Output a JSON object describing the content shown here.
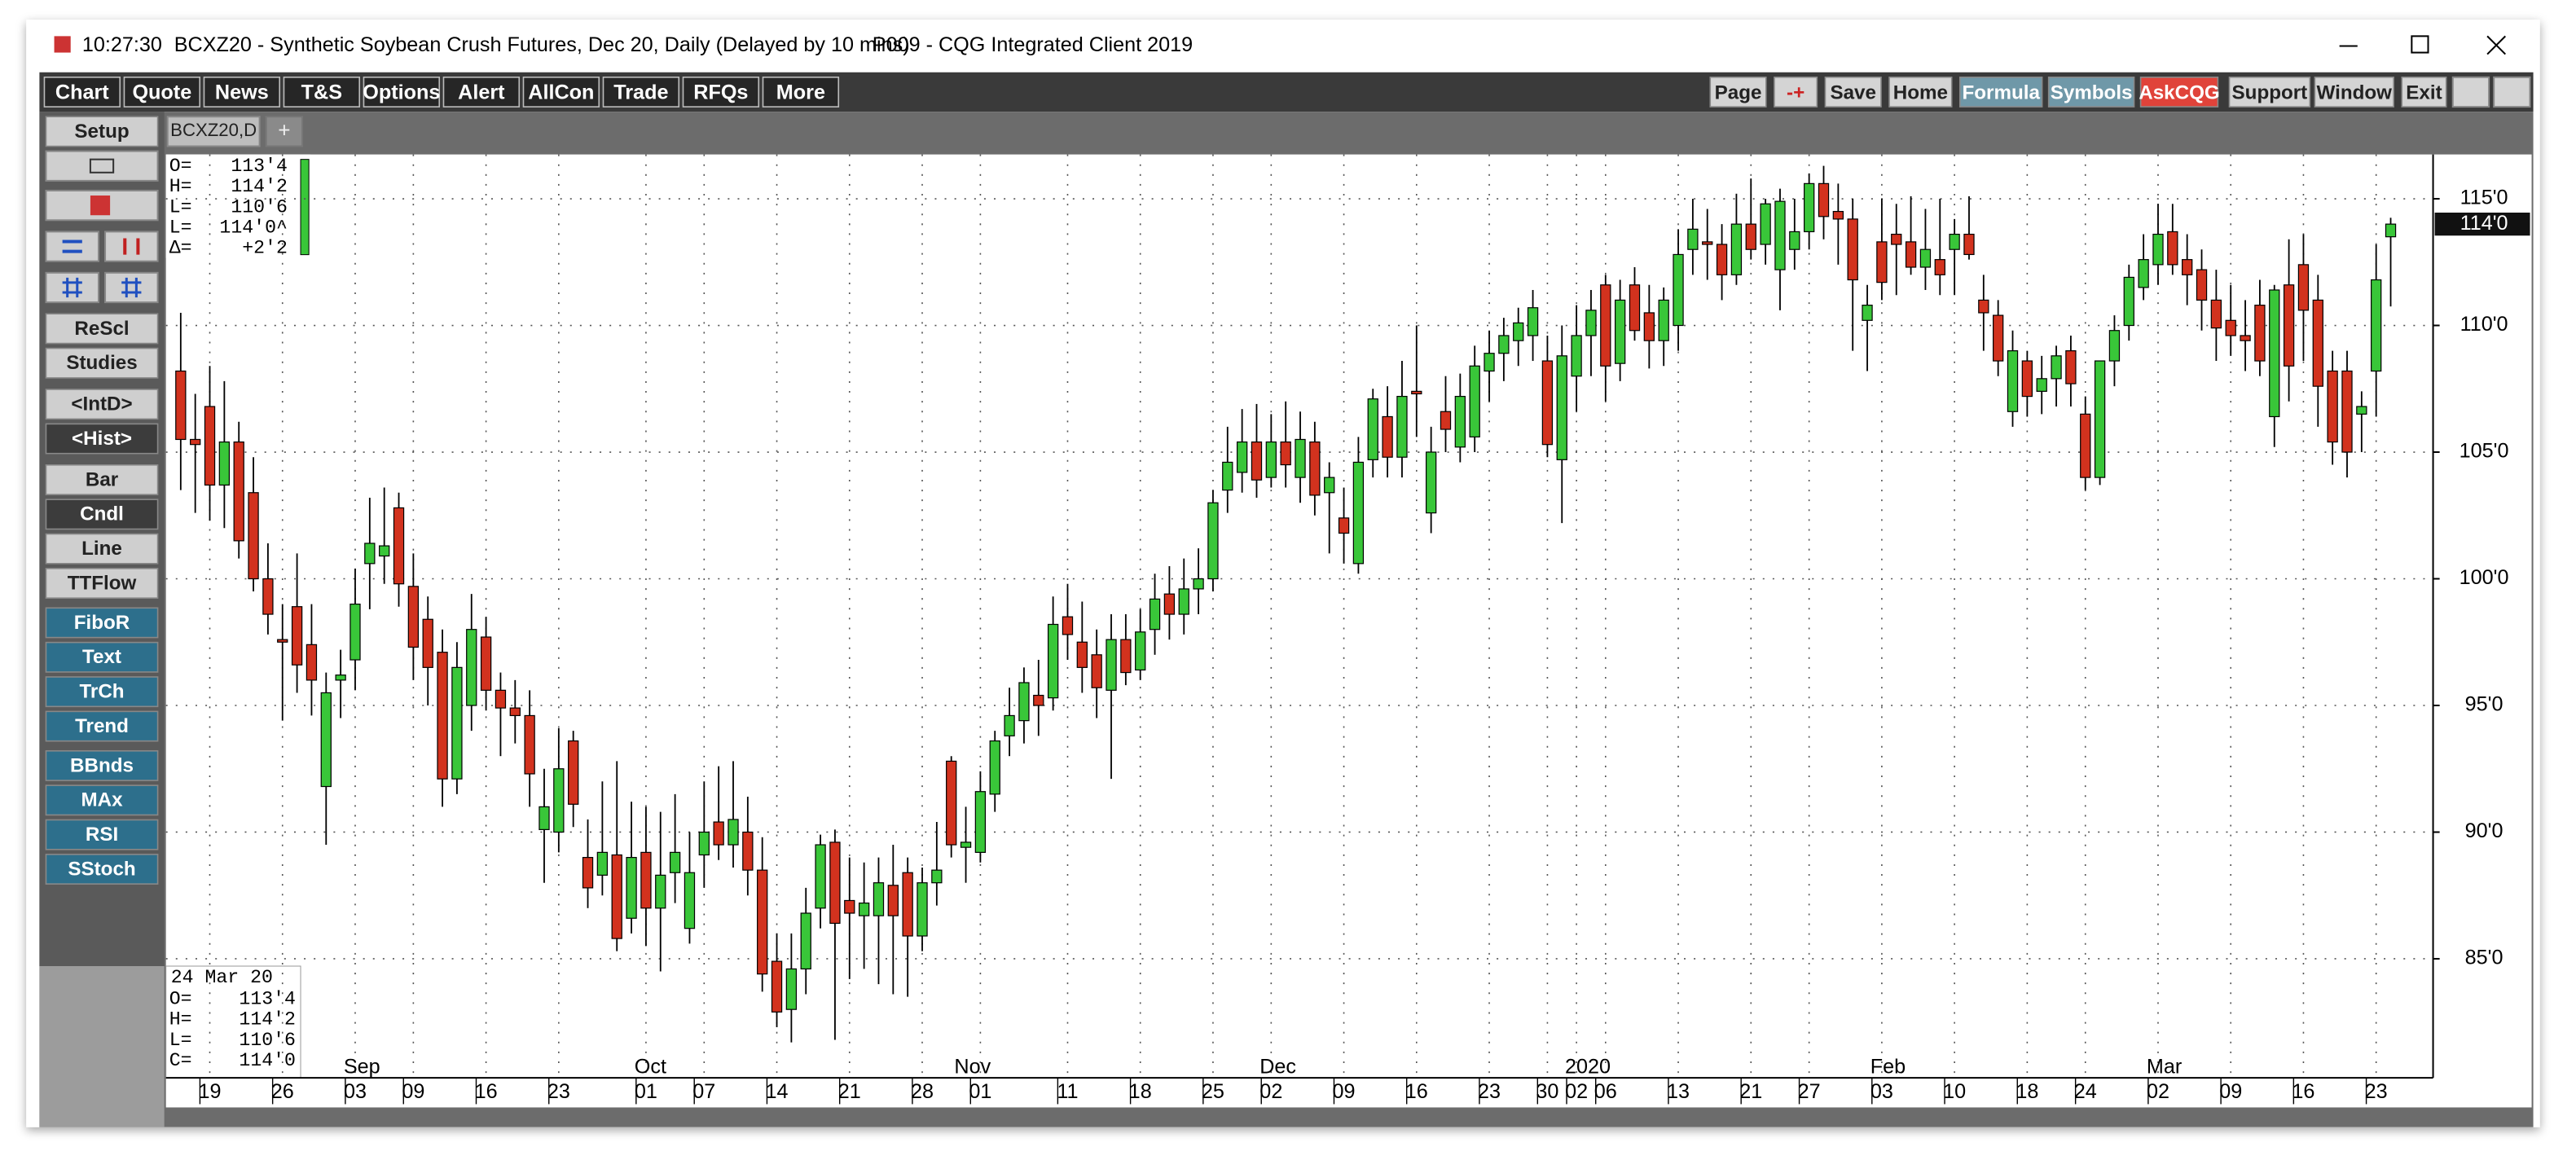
{
  "window": {
    "time": "10:27:30",
    "title": "BCXZ20 - Synthetic Soybean Crush Futures, Dec 20, Daily (Delayed by 10 mins)",
    "workspace": "P009 - CQG Integrated Client 2019"
  },
  "toolbar_left": [
    "Chart",
    "Quote",
    "News",
    "T&S",
    "Options",
    "Alert",
    "AllCon",
    "Trade",
    "RFQs",
    "More"
  ],
  "toolbar_right": [
    "Page",
    "-+",
    "Save",
    "Home",
    "Formula",
    "Symbols",
    "AskCQG",
    "Support",
    "Window",
    "Exit"
  ],
  "tabs": [
    "BCXZ20,D",
    "+"
  ],
  "sidebar": [
    "Setup",
    "ReScl",
    "Studies",
    "<IntD>",
    "<Hist>",
    "Bar",
    "Cndl",
    "Line",
    "TTFlow",
    "FiboR",
    "Text",
    "TrCh",
    "Trend",
    "BBnds",
    "MAx",
    "RSI",
    "SStoch"
  ],
  "quote_box": [
    {
      "label": "O=",
      "value": "113'4"
    },
    {
      "label": "H=",
      "value": "114'2"
    },
    {
      "label": "L=",
      "value": "110'6"
    },
    {
      "label": "L=",
      "value": "114'0^"
    },
    {
      "label": "Δ=",
      "value": "+2'2"
    }
  ],
  "cursor_box": {
    "date": "24 Mar 20",
    "rows": [
      {
        "label": "O=",
        "value": "113'4"
      },
      {
        "label": "H=",
        "value": "114'2"
      },
      {
        "label": "L=",
        "value": "110'6"
      },
      {
        "label": "C=",
        "value": "114'0"
      }
    ]
  },
  "chart_data": {
    "type": "candlestick",
    "up_color": "#39c639",
    "down_color": "#d2321e",
    "grid": true,
    "ylim": [
      80.3,
      116.75
    ],
    "yticks": [
      {
        "value": 85,
        "label": "85'0"
      },
      {
        "value": 90,
        "label": "90'0"
      },
      {
        "value": 95,
        "label": "95'0"
      },
      {
        "value": 100,
        "label": "100'0"
      },
      {
        "value": 105,
        "label": "105'0"
      },
      {
        "value": 110,
        "label": "110'0"
      },
      {
        "value": 115,
        "label": "115'0"
      }
    ],
    "last_price": {
      "value": 114,
      "label": "114'0"
    },
    "categories": [
      null,
      null,
      "19",
      null,
      null,
      null,
      null,
      "26",
      null,
      null,
      null,
      null,
      "03",
      null,
      null,
      null,
      "09",
      null,
      null,
      null,
      null,
      "16",
      null,
      null,
      null,
      null,
      "23",
      null,
      null,
      null,
      null,
      null,
      "01",
      null,
      null,
      null,
      "07",
      null,
      null,
      null,
      null,
      "14",
      null,
      null,
      null,
      null,
      "21",
      null,
      null,
      null,
      null,
      "28",
      null,
      null,
      null,
      "01",
      null,
      null,
      null,
      null,
      null,
      "11",
      null,
      null,
      null,
      null,
      "18",
      null,
      null,
      null,
      null,
      "25",
      null,
      null,
      null,
      "02",
      null,
      null,
      null,
      null,
      "09",
      null,
      null,
      null,
      null,
      "16",
      null,
      null,
      null,
      null,
      "23",
      null,
      null,
      null,
      "30",
      null,
      "02",
      null,
      "06",
      null,
      null,
      null,
      null,
      "13",
      null,
      null,
      null,
      null,
      "21",
      null,
      null,
      null,
      "27",
      null,
      null,
      null,
      null,
      "03",
      null,
      null,
      null,
      null,
      "10",
      null,
      null,
      null,
      null,
      "18",
      null,
      null,
      null,
      "24",
      null,
      null,
      null,
      null,
      "02",
      null,
      null,
      null,
      null,
      "09",
      null,
      null,
      null,
      null,
      "16",
      null,
      null,
      null,
      null,
      "23",
      null
    ],
    "x_groups": [
      {
        "label": "Sep",
        "start": 12
      },
      {
        "label": "Oct",
        "start": 32
      },
      {
        "label": "Nov",
        "start": 54
      },
      {
        "label": "Dec",
        "start": 75
      },
      {
        "label": "2020",
        "start": 96
      },
      {
        "label": "Feb",
        "start": 117
      },
      {
        "label": "Mar",
        "start": 136
      }
    ],
    "ohlc": [
      [
        108.2,
        110.5,
        103.5,
        105.5
      ],
      [
        105.5,
        107.3,
        102.6,
        105.3
      ],
      [
        106.8,
        108.4,
        102.3,
        103.7
      ],
      [
        103.7,
        107.8,
        102.0,
        105.4
      ],
      [
        105.4,
        106.2,
        100.8,
        101.5
      ],
      [
        103.4,
        104.8,
        99.5,
        100.0
      ],
      [
        100.0,
        101.4,
        97.8,
        98.6
      ],
      [
        97.6,
        99.0,
        94.4,
        97.5
      ],
      [
        98.9,
        101.0,
        95.5,
        96.6
      ],
      [
        97.4,
        99.0,
        94.6,
        96.0
      ],
      [
        91.8,
        96.3,
        89.5,
        95.5
      ],
      [
        96.0,
        97.2,
        94.5,
        96.2
      ],
      [
        96.8,
        100.4,
        95.6,
        99.0
      ],
      [
        100.6,
        103.2,
        98.8,
        101.4
      ],
      [
        100.9,
        103.6,
        99.8,
        101.3
      ],
      [
        102.8,
        103.4,
        98.9,
        99.8
      ],
      [
        99.7,
        101.0,
        96.0,
        97.3
      ],
      [
        98.4,
        99.3,
        95.0,
        96.5
      ],
      [
        97.1,
        98.0,
        91.0,
        92.1
      ],
      [
        92.1,
        97.5,
        91.5,
        96.5
      ],
      [
        95.0,
        99.4,
        94.0,
        98.0
      ],
      [
        97.7,
        98.5,
        94.8,
        95.6
      ],
      [
        95.6,
        96.3,
        93.0,
        94.9
      ],
      [
        94.9,
        96.0,
        93.5,
        94.6
      ],
      [
        94.6,
        95.6,
        91.0,
        92.3
      ],
      [
        90.1,
        92.5,
        88.0,
        91.0
      ],
      [
        90.0,
        94.1,
        89.2,
        92.5
      ],
      [
        93.6,
        94.0,
        90.2,
        91.1
      ],
      [
        89.0,
        90.5,
        87.0,
        87.8
      ],
      [
        88.3,
        92.0,
        87.5,
        89.2
      ],
      [
        89.1,
        92.8,
        85.3,
        85.8
      ],
      [
        86.6,
        91.2,
        86.0,
        89.0
      ],
      [
        89.2,
        91.0,
        85.5,
        87.0
      ],
      [
        87.0,
        90.8,
        84.5,
        88.3
      ],
      [
        88.4,
        91.5,
        87.2,
        89.2
      ],
      [
        86.2,
        90.0,
        85.6,
        88.4
      ],
      [
        89.1,
        92.0,
        87.8,
        90.0
      ],
      [
        90.4,
        92.6,
        88.9,
        89.5
      ],
      [
        89.5,
        92.8,
        88.6,
        90.5
      ],
      [
        90.0,
        91.4,
        87.5,
        88.5
      ],
      [
        88.5,
        89.8,
        83.7,
        84.4
      ],
      [
        84.9,
        86.0,
        82.3,
        82.9
      ],
      [
        83.0,
        86.0,
        81.7,
        84.6
      ],
      [
        84.6,
        87.8,
        83.6,
        86.8
      ],
      [
        87.0,
        89.9,
        86.2,
        89.5
      ],
      [
        89.6,
        90.1,
        81.8,
        86.4
      ],
      [
        87.3,
        89.0,
        84.2,
        86.8
      ],
      [
        86.7,
        88.8,
        84.6,
        87.2
      ],
      [
        86.7,
        89.0,
        84.0,
        88.0
      ],
      [
        87.9,
        89.5,
        83.6,
        86.7
      ],
      [
        88.4,
        89.0,
        83.5,
        85.9
      ],
      [
        85.9,
        88.6,
        85.3,
        88.0
      ],
      [
        88.0,
        90.4,
        87.1,
        88.5
      ],
      [
        92.8,
        93.0,
        89.0,
        89.5
      ],
      [
        89.4,
        91.0,
        88.0,
        89.6
      ],
      [
        89.2,
        92.4,
        88.8,
        91.6
      ],
      [
        91.5,
        94.0,
        90.8,
        93.6
      ],
      [
        93.8,
        95.7,
        93.0,
        94.6
      ],
      [
        94.4,
        96.5,
        93.5,
        95.9
      ],
      [
        95.4,
        96.8,
        93.8,
        95.0
      ],
      [
        95.3,
        99.3,
        94.8,
        98.2
      ],
      [
        98.5,
        99.8,
        96.8,
        97.8
      ],
      [
        97.5,
        99.1,
        95.5,
        96.5
      ],
      [
        97.0,
        98.0,
        94.5,
        95.7
      ],
      [
        95.6,
        98.6,
        92.1,
        97.6
      ],
      [
        97.6,
        98.6,
        95.8,
        96.3
      ],
      [
        96.4,
        98.8,
        96.0,
        97.9
      ],
      [
        98.0,
        100.2,
        97.0,
        99.2
      ],
      [
        99.4,
        100.5,
        97.6,
        98.6
      ],
      [
        98.6,
        100.8,
        97.8,
        99.6
      ],
      [
        99.6,
        101.2,
        98.6,
        100.0
      ],
      [
        100.0,
        103.5,
        99.5,
        103.0
      ],
      [
        103.5,
        106.0,
        102.6,
        104.6
      ],
      [
        104.2,
        106.7,
        103.4,
        105.4
      ],
      [
        105.4,
        106.9,
        103.2,
        103.9
      ],
      [
        104.0,
        106.5,
        103.6,
        105.4
      ],
      [
        105.4,
        107.0,
        103.6,
        104.5
      ],
      [
        104.0,
        106.6,
        103.0,
        105.5
      ],
      [
        105.4,
        106.2,
        102.5,
        103.3
      ],
      [
        103.4,
        104.6,
        101.0,
        104.0
      ],
      [
        102.4,
        103.6,
        100.6,
        101.8
      ],
      [
        100.6,
        105.6,
        100.2,
        104.6
      ],
      [
        104.7,
        107.5,
        104.0,
        107.1
      ],
      [
        106.4,
        107.6,
        104.0,
        104.8
      ],
      [
        104.8,
        108.6,
        104.0,
        107.2
      ],
      [
        107.4,
        110.0,
        105.6,
        107.3
      ],
      [
        102.6,
        106.0,
        101.8,
        105.0
      ],
      [
        106.6,
        108.0,
        105.0,
        105.9
      ],
      [
        105.2,
        108.1,
        104.6,
        107.2
      ],
      [
        105.6,
        109.2,
        105.0,
        108.4
      ],
      [
        108.2,
        109.8,
        107.0,
        108.9
      ],
      [
        108.9,
        110.3,
        107.8,
        109.6
      ],
      [
        109.4,
        110.7,
        108.4,
        110.1
      ],
      [
        109.6,
        111.4,
        108.6,
        110.7
      ],
      [
        108.6,
        109.6,
        104.8,
        105.3
      ],
      [
        104.7,
        110.0,
        102.2,
        108.8
      ],
      [
        108.0,
        110.8,
        106.6,
        109.6
      ],
      [
        109.6,
        111.4,
        108.0,
        110.6
      ],
      [
        111.6,
        112.0,
        107.0,
        108.4
      ],
      [
        108.5,
        111.8,
        107.8,
        111.0
      ],
      [
        111.6,
        112.3,
        109.4,
        109.8
      ],
      [
        110.5,
        111.6,
        108.3,
        109.4
      ],
      [
        109.4,
        111.5,
        108.4,
        111.0
      ],
      [
        110.0,
        113.8,
        109.0,
        112.8
      ],
      [
        113.0,
        115.0,
        112.0,
        113.8
      ],
      [
        113.3,
        114.6,
        111.8,
        113.2
      ],
      [
        113.2,
        114.0,
        111.0,
        112.0
      ],
      [
        112.0,
        115.2,
        111.6,
        114.0
      ],
      [
        114.0,
        115.8,
        112.6,
        113.0
      ],
      [
        113.2,
        115.0,
        112.4,
        114.8
      ],
      [
        112.2,
        115.4,
        110.6,
        114.9
      ],
      [
        113.0,
        115.0,
        112.2,
        113.7
      ],
      [
        113.7,
        116.0,
        113.0,
        115.6
      ],
      [
        115.6,
        116.3,
        113.4,
        114.3
      ],
      [
        114.5,
        115.6,
        112.4,
        114.2
      ],
      [
        114.2,
        115.0,
        109.0,
        111.8
      ],
      [
        110.2,
        111.6,
        108.2,
        110.8
      ],
      [
        113.3,
        115.0,
        111.0,
        111.7
      ],
      [
        113.6,
        114.8,
        111.2,
        113.2
      ],
      [
        113.3,
        115.1,
        112.0,
        112.3
      ],
      [
        112.3,
        114.6,
        111.4,
        113.0
      ],
      [
        112.6,
        115.0,
        111.2,
        112.0
      ],
      [
        113.0,
        114.2,
        111.2,
        113.6
      ],
      [
        113.6,
        115.1,
        112.6,
        112.8
      ],
      [
        111.0,
        112.0,
        109.0,
        110.5
      ],
      [
        110.4,
        111.0,
        108.0,
        108.6
      ],
      [
        106.6,
        109.8,
        106.0,
        109.0
      ],
      [
        108.6,
        109.0,
        106.4,
        107.2
      ],
      [
        107.4,
        108.8,
        106.5,
        107.9
      ],
      [
        107.9,
        109.2,
        106.8,
        108.8
      ],
      [
        109.0,
        109.6,
        106.8,
        107.7
      ],
      [
        106.5,
        107.2,
        103.5,
        104.0
      ],
      [
        104.0,
        108.4,
        103.7,
        108.6
      ],
      [
        108.6,
        110.4,
        107.6,
        109.8
      ],
      [
        110.0,
        112.4,
        109.4,
        111.9
      ],
      [
        111.5,
        113.6,
        111.0,
        112.6
      ],
      [
        112.4,
        114.8,
        111.6,
        113.6
      ],
      [
        113.7,
        114.8,
        112.0,
        112.4
      ],
      [
        112.6,
        113.6,
        110.8,
        112.0
      ],
      [
        112.2,
        113.0,
        109.8,
        111.0
      ],
      [
        111.0,
        112.2,
        108.6,
        109.9
      ],
      [
        110.2,
        111.6,
        108.8,
        109.6
      ],
      [
        109.6,
        111.0,
        108.2,
        109.4
      ],
      [
        110.8,
        111.8,
        108.0,
        108.6
      ],
      [
        106.4,
        111.6,
        105.2,
        111.4
      ],
      [
        111.6,
        113.4,
        107.0,
        108.4
      ],
      [
        112.4,
        113.6,
        108.6,
        110.6
      ],
      [
        111.0,
        112.0,
        106.0,
        107.6
      ],
      [
        108.2,
        109.0,
        104.5,
        105.4
      ],
      [
        108.2,
        109.0,
        104.0,
        105.0
      ],
      [
        106.5,
        107.4,
        105.0,
        106.8
      ],
      [
        108.2,
        113.2,
        106.4,
        111.8
      ],
      [
        113.5,
        114.25,
        110.75,
        114.0
      ]
    ]
  }
}
